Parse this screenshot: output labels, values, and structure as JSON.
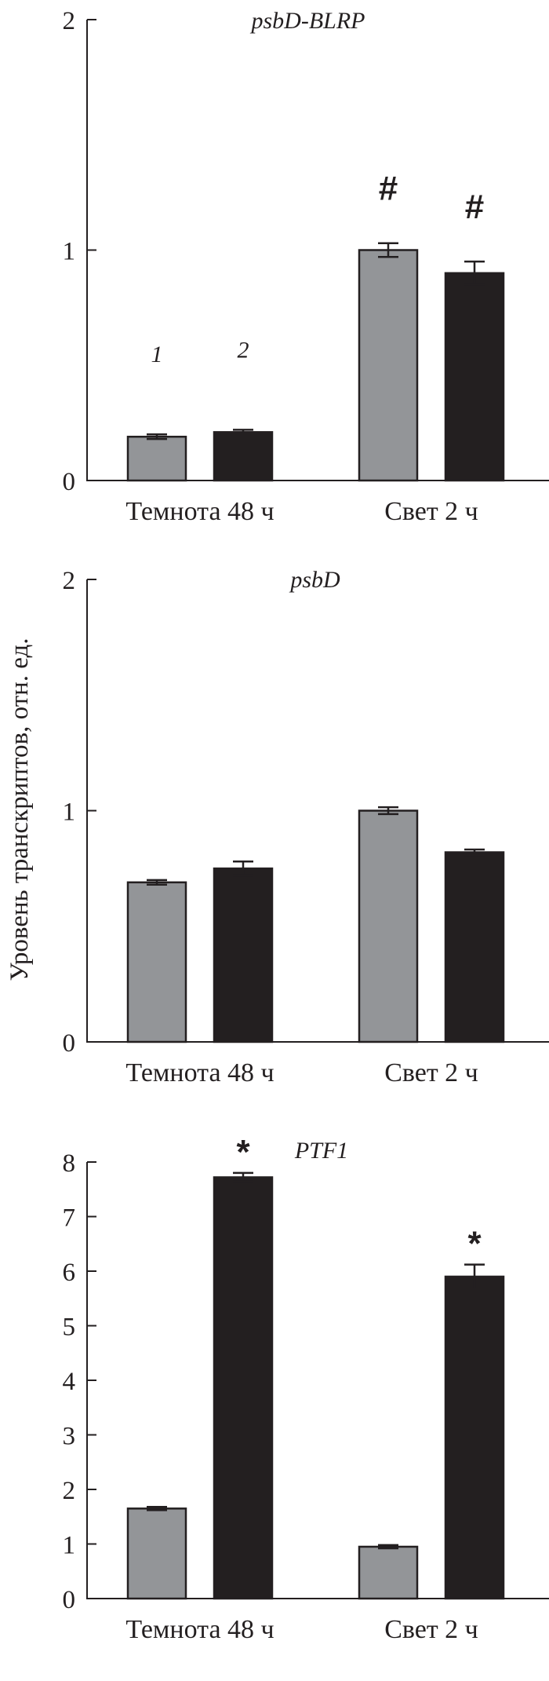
{
  "colors": {
    "series1": "#939598",
    "series2": "#231f20",
    "axis": "#231f20"
  },
  "chart_data": {
    "type": "bar",
    "ylabel": "Уровень транскриптов, отн. ед.",
    "panels": [
      {
        "title": "psbD-BLRP",
        "categories": [
          "Темнота 48 ч",
          "Свет 2 ч"
        ],
        "ylim": [
          0,
          2
        ],
        "yticks": [
          "0",
          "1",
          "2"
        ],
        "series": [
          {
            "name": "1",
            "values": [
              0.19,
              1.0
            ],
            "errors": [
              0.01,
              0.03
            ]
          },
          {
            "name": "2",
            "values": [
              0.21,
              0.9
            ],
            "errors": [
              0.01,
              0.05
            ]
          }
        ],
        "series_labels": [
          "1",
          "2"
        ],
        "markers": [
          {
            "series": 0,
            "category": 1,
            "text": "#"
          },
          {
            "series": 1,
            "category": 1,
            "text": "#"
          }
        ]
      },
      {
        "title": "psbD",
        "categories": [
          "Темнота 48 ч",
          "Свет 2 ч"
        ],
        "ylim": [
          0,
          2
        ],
        "yticks": [
          "0",
          "1",
          "2"
        ],
        "series": [
          {
            "name": "1",
            "values": [
              0.69,
              1.0
            ],
            "errors": [
              0.01,
              0.015
            ]
          },
          {
            "name": "2",
            "values": [
              0.75,
              0.82
            ],
            "errors": [
              0.03,
              0.012
            ]
          }
        ],
        "markers": []
      },
      {
        "title": "PTF1",
        "categories": [
          "Темнота 48 ч",
          "Свет 2 ч"
        ],
        "ylim": [
          0,
          8
        ],
        "yticks": [
          "0",
          "1",
          "2",
          "3",
          "4",
          "5",
          "6",
          "7",
          "8"
        ],
        "series": [
          {
            "name": "1",
            "values": [
              1.65,
              0.95
            ],
            "errors": [
              0.03,
              0.03
            ]
          },
          {
            "name": "2",
            "values": [
              7.72,
              5.9
            ],
            "errors": [
              0.08,
              0.22
            ]
          }
        ],
        "markers": [
          {
            "series": 1,
            "category": 0,
            "text": "*"
          },
          {
            "series": 1,
            "category": 1,
            "text": "*"
          }
        ]
      }
    ]
  }
}
